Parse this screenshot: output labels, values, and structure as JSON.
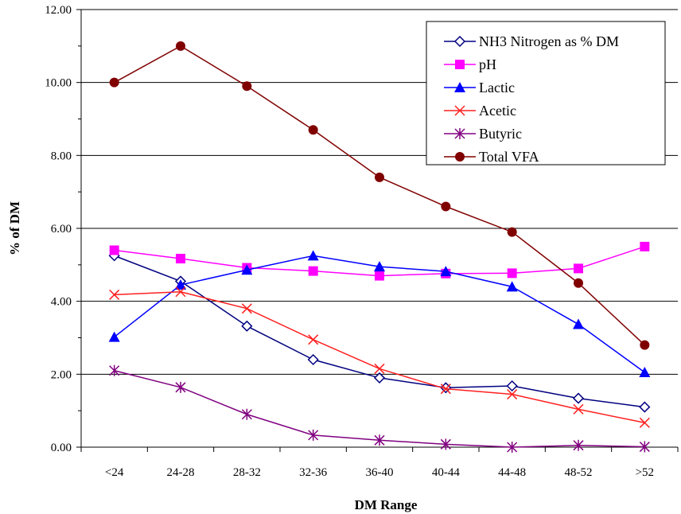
{
  "chart_data": {
    "type": "line",
    "xlabel": "DM Range",
    "ylabel": "% of DM",
    "ylim": [
      0,
      12
    ],
    "yticks": [
      "0.00",
      "2.00",
      "4.00",
      "6.00",
      "8.00",
      "10.00",
      "12.00"
    ],
    "grid": "horizontal",
    "legend_position": "top-right",
    "categories": [
      "<24",
      "24-28",
      "28-32",
      "32-36",
      "36-40",
      "40-44",
      "44-48",
      "48-52",
      ">52"
    ],
    "series": [
      {
        "name": "NH3 Nitrogen as % DM",
        "color": "#000080",
        "marker": "open-diamond",
        "values": [
          5.25,
          4.55,
          3.32,
          2.4,
          1.9,
          1.63,
          1.68,
          1.34,
          1.1
        ]
      },
      {
        "name": "pH",
        "color": "#ff00ff",
        "marker": "filled-square",
        "values": [
          5.4,
          5.17,
          4.92,
          4.83,
          4.7,
          4.76,
          4.77,
          4.9,
          5.5
        ]
      },
      {
        "name": "Lactic",
        "color": "#0000ff",
        "marker": "filled-triangle",
        "values": [
          3.02,
          4.45,
          4.86,
          5.25,
          4.95,
          4.82,
          4.4,
          3.37,
          2.05
        ]
      },
      {
        "name": "Acetic",
        "color": "#ff2020",
        "marker": "x",
        "values": [
          4.18,
          4.26,
          3.8,
          2.95,
          2.15,
          1.6,
          1.45,
          1.04,
          0.67
        ]
      },
      {
        "name": "Butyric",
        "color": "#800080",
        "marker": "star",
        "values": [
          2.1,
          1.64,
          0.9,
          0.33,
          0.19,
          0.08,
          0.0,
          0.05,
          0.01
        ]
      },
      {
        "name": "Total VFA",
        "color": "#800000",
        "marker": "filled-circle",
        "values": [
          10.0,
          11.0,
          9.9,
          8.7,
          7.4,
          6.6,
          5.9,
          4.5,
          2.8
        ]
      }
    ]
  }
}
